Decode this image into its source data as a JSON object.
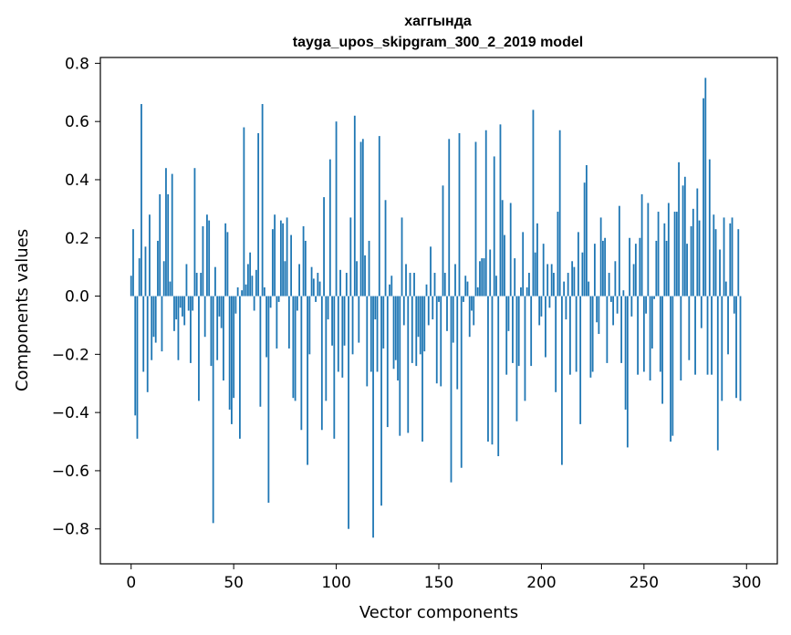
{
  "chart_data": {
    "type": "bar",
    "title": "хаггында",
    "subtitle": "tayga_upos_skipgram_300_2_2019 model",
    "xlabel": "Vector components",
    "ylabel": "Components values",
    "xlim": [
      -15,
      315
    ],
    "ylim": [
      -0.92,
      0.82
    ],
    "x_ticks": [
      0,
      50,
      100,
      150,
      200,
      250,
      300
    ],
    "y_ticks": [
      -0.8,
      -0.6,
      -0.4,
      -0.2,
      0.0,
      0.2,
      0.4,
      0.6,
      0.8
    ],
    "x_tick_labels": [
      "0",
      "50",
      "100",
      "150",
      "200",
      "250",
      "300"
    ],
    "y_tick_labels": [
      "−0.8",
      "−0.6",
      "−0.4",
      "−0.2",
      "0.0",
      "0.2",
      "0.4",
      "0.6",
      "0.8"
    ],
    "bar_color": "#1f77b4",
    "values": [
      0.07,
      0.23,
      -0.41,
      -0.49,
      0.13,
      0.66,
      -0.26,
      0.17,
      -0.33,
      0.28,
      -0.22,
      -0.14,
      -0.16,
      0.19,
      0.35,
      -0.19,
      0.12,
      0.44,
      0.35,
      0.05,
      0.42,
      -0.12,
      -0.08,
      -0.22,
      -0.04,
      -0.07,
      -0.1,
      0.11,
      -0.05,
      -0.23,
      -0.05,
      0.44,
      0.08,
      -0.36,
      0.08,
      0.24,
      -0.14,
      0.28,
      0.26,
      -0.24,
      -0.78,
      0.1,
      -0.22,
      -0.07,
      -0.11,
      -0.29,
      0.25,
      0.22,
      -0.39,
      -0.44,
      -0.35,
      -0.06,
      0.03,
      -0.49,
      0.02,
      0.58,
      0.04,
      0.11,
      0.15,
      0.07,
      -0.05,
      0.09,
      0.56,
      -0.38,
      0.66,
      0.03,
      -0.21,
      -0.71,
      -0.04,
      0.23,
      0.28,
      -0.18,
      -0.02,
      0.26,
      0.25,
      0.12,
      0.27,
      -0.18,
      0.21,
      -0.35,
      -0.36,
      -0.05,
      0.11,
      -0.46,
      0.24,
      0.19,
      -0.58,
      -0.2,
      0.1,
      0.06,
      -0.02,
      0.08,
      0.05,
      -0.46,
      0.34,
      -0.36,
      -0.08,
      0.47,
      -0.17,
      -0.49,
      0.6,
      -0.26,
      0.09,
      -0.28,
      -0.17,
      0.08,
      -0.8,
      0.27,
      -0.2,
      0.62,
      0.12,
      -0.16,
      0.53,
      0.54,
      0.14,
      -0.31,
      0.19,
      -0.26,
      -0.83,
      -0.08,
      -0.26,
      0.55,
      -0.72,
      -0.18,
      0.33,
      -0.45,
      0.04,
      0.07,
      -0.25,
      -0.22,
      -0.29,
      -0.48,
      0.27,
      -0.1,
      0.11,
      -0.47,
      0.08,
      -0.23,
      0.08,
      -0.24,
      -0.14,
      -0.2,
      -0.5,
      -0.19,
      0.04,
      -0.1,
      0.17,
      -0.08,
      0.08,
      -0.3,
      -0.02,
      -0.31,
      0.38,
      0.08,
      -0.12,
      0.54,
      -0.64,
      -0.16,
      0.11,
      -0.32,
      0.56,
      -0.59,
      -0.02,
      0.07,
      0.05,
      -0.14,
      -0.05,
      -0.1,
      0.53,
      0.03,
      0.12,
      0.13,
      0.13,
      0.57,
      -0.5,
      0.16,
      -0.51,
      0.48,
      0.07,
      -0.55,
      0.59,
      0.33,
      0.21,
      -0.27,
      -0.12,
      0.32,
      -0.23,
      0.13,
      -0.43,
      -0.24,
      0.03,
      0.22,
      -0.36,
      0.03,
      0.08,
      -0.24,
      0.64,
      0.15,
      0.25,
      -0.1,
      -0.07,
      0.18,
      -0.21,
      0.11,
      -0.04,
      0.11,
      0.08,
      -0.33,
      0.29,
      0.57,
      -0.58,
      0.05,
      -0.08,
      0.08,
      -0.27,
      0.12,
      0.1,
      -0.26,
      0.22,
      -0.44,
      0.15,
      0.39,
      0.45,
      0.05,
      -0.28,
      -0.26,
      0.18,
      -0.09,
      -0.13,
      0.27,
      0.19,
      0.2,
      -0.23,
      0.08,
      -0.02,
      -0.1,
      0.12,
      -0.06,
      0.31,
      -0.23,
      0.02,
      -0.39,
      -0.52,
      0.2,
      -0.07,
      0.11,
      0.18,
      -0.27,
      0.2,
      0.35,
      -0.26,
      -0.06,
      0.32,
      -0.29,
      -0.18,
      -0.01,
      0.19,
      0.29,
      -0.26,
      -0.37,
      0.25,
      0.19,
      0.32,
      -0.5,
      -0.48,
      0.29,
      0.29,
      0.46,
      -0.29,
      0.38,
      0.41,
      0.18,
      -0.22,
      0.24,
      0.3,
      -0.27,
      0.37,
      0.26,
      -0.11,
      0.68,
      0.75,
      -0.27,
      0.47,
      -0.27,
      0.28,
      0.23,
      -0.53,
      0.16,
      -0.36,
      0.27,
      0.05,
      -0.2,
      0.25,
      0.27,
      -0.06,
      -0.35,
      0.23,
      -0.36
    ]
  }
}
